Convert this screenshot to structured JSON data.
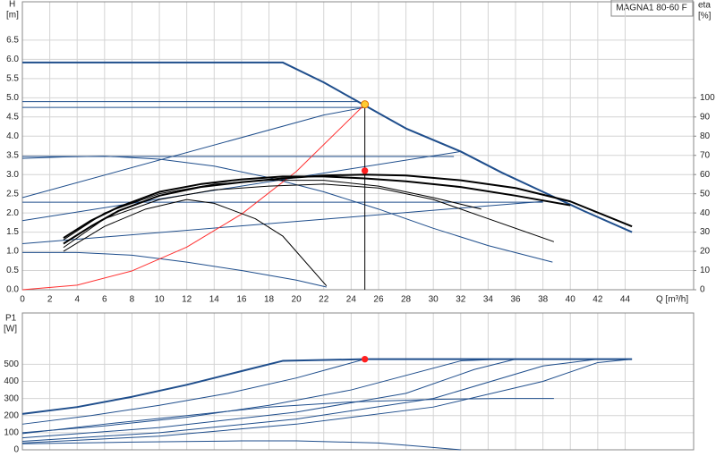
{
  "chart_data": [
    {
      "type": "line",
      "title": "MAGNA1 80-60 F",
      "xlabel": "Q [m³/h]",
      "ylabel": "H",
      "yunit": "[m]",
      "y2label": "eta",
      "y2unit": "[%]",
      "xlim": [
        0,
        49
      ],
      "xticks": [
        0,
        2,
        4,
        6,
        8,
        10,
        12,
        14,
        16,
        18,
        20,
        22,
        24,
        26,
        28,
        30,
        32,
        34,
        36,
        38,
        40,
        42,
        44
      ],
      "ylim": [
        0,
        7.5
      ],
      "yticks": [
        {
          "value": 0,
          "label": "0.0"
        },
        0.5,
        {
          "value": 1,
          "label": "1.0"
        },
        1.5,
        {
          "value": 2,
          "label": "2.0"
        },
        2.5,
        {
          "value": 3,
          "label": "3.0"
        },
        3.5,
        {
          "value": 4,
          "label": "4.0"
        },
        4.5,
        {
          "value": 5,
          "label": "5.0"
        },
        5.5,
        {
          "value": 6,
          "label": "6.0"
        },
        6.5
      ],
      "y2lim": [
        0,
        150
      ],
      "y2ticks": [
        0,
        10,
        20,
        30,
        40,
        50,
        60,
        70,
        80,
        90,
        100
      ],
      "grid": true,
      "show_xtick_labels": true,
      "series": [
        {
          "color": "#1f4e8c",
          "width": 2,
          "x": [
            0,
            19,
            22,
            25,
            28,
            32,
            35,
            38,
            41,
            44.5
          ],
          "values": [
            5.92,
            5.92,
            5.4,
            4.8,
            4.2,
            3.6,
            3.05,
            2.55,
            2.05,
            1.5
          ]
        },
        {
          "color": "#1f4e8c",
          "width": 1,
          "x": [
            0,
            24.5
          ],
          "values": [
            4.9,
            4.9
          ]
        },
        {
          "color": "#1f4e8c",
          "width": 1,
          "x": [
            0,
            25
          ],
          "values": [
            4.75,
            4.75
          ]
        },
        {
          "color": "#1f4e8c",
          "width": 1,
          "x": [
            0,
            22,
            25
          ],
          "values": [
            2.4,
            4.55,
            4.75
          ]
        },
        {
          "color": "#1f4e8c",
          "width": 1,
          "x": [
            0,
            31.5
          ],
          "values": [
            3.47,
            3.47
          ]
        },
        {
          "color": "#1f4e8c",
          "width": 1,
          "x": [
            0,
            32
          ],
          "values": [
            1.8,
            3.6
          ]
        },
        {
          "color": "#1f4e8c",
          "width": 1,
          "x": [
            0,
            38
          ],
          "values": [
            2.28,
            2.28
          ]
        },
        {
          "color": "#1f4e8c",
          "width": 1,
          "x": [
            0,
            38
          ],
          "values": [
            1.2,
            2.3
          ]
        },
        {
          "color": "#1f4e8c",
          "width": 1,
          "x": [
            0,
            3,
            6,
            10,
            14,
            18,
            22,
            26,
            30,
            34,
            38.7
          ],
          "values": [
            3.42,
            3.46,
            3.48,
            3.4,
            3.22,
            2.92,
            2.55,
            2.1,
            1.6,
            1.15,
            0.72
          ]
        },
        {
          "color": "#1f4e8c",
          "width": 1,
          "x": [
            0,
            4,
            8,
            12,
            16,
            20,
            22.2
          ],
          "values": [
            0.97,
            0.97,
            0.9,
            0.72,
            0.5,
            0.25,
            0.07
          ]
        },
        {
          "color": "#ff3030",
          "width": 1,
          "x": [
            0,
            4,
            8,
            12,
            16,
            20,
            25
          ],
          "values": [
            0,
            0.12,
            0.49,
            1.11,
            1.97,
            3.08,
            4.83
          ]
        },
        {
          "color": "#000000",
          "width": 2,
          "axis": "y2",
          "x": [
            3,
            5,
            7,
            10,
            13,
            16,
            19,
            22,
            25,
            28,
            32,
            36,
            40,
            44.5
          ],
          "values": [
            24,
            33,
            41,
            49,
            53.5,
            56,
            58,
            59.5,
            60,
            59.5,
            57,
            53,
            46,
            33
          ]
        },
        {
          "color": "#000000",
          "width": 2,
          "axis": "y2",
          "x": [
            3,
            5,
            7,
            10,
            13,
            16,
            19,
            22,
            25,
            28,
            32,
            36,
            40
          ],
          "values": [
            27,
            36,
            43,
            51,
            55,
            57.5,
            59,
            59,
            58,
            56.5,
            53.5,
            49,
            44
          ]
        },
        {
          "color": "#000000",
          "width": 1,
          "axis": "y2",
          "x": [
            3,
            6,
            10,
            14,
            18,
            22,
            26,
            30,
            34,
            38.8
          ],
          "values": [
            22,
            37,
            47,
            52,
            54,
            55,
            53,
            47,
            37,
            25
          ]
        },
        {
          "color": "#000000",
          "width": 1,
          "axis": "y2",
          "x": [
            3,
            6,
            10,
            14,
            18,
            22,
            26,
            30,
            33.5
          ],
          "values": [
            26,
            40,
            50,
            55,
            57,
            57,
            54,
            48,
            42
          ]
        },
        {
          "color": "#000000",
          "width": 1,
          "axis": "y2",
          "x": [
            3,
            6,
            9,
            12,
            14,
            17,
            19,
            22.2
          ],
          "values": [
            20,
            33,
            42,
            47,
            45,
            37,
            28,
            2
          ]
        }
      ],
      "points": [
        {
          "x": 25,
          "y": 4.83,
          "color": "#ffcc33",
          "stroke": "#e07000",
          "drop_line": true
        },
        {
          "x": 25,
          "y": 62,
          "color": "#ff2020",
          "stroke": "#ff2020",
          "axis": "y2"
        }
      ]
    },
    {
      "type": "line",
      "ylabel": "P1",
      "yunit": "[W]",
      "xlim": [
        0,
        49
      ],
      "xticks": [
        0,
        2,
        4,
        6,
        8,
        10,
        12,
        14,
        16,
        18,
        20,
        22,
        24,
        26,
        28,
        30,
        32,
        34,
        36,
        38,
        40,
        42,
        44
      ],
      "ylim": [
        0,
        800
      ],
      "yticks": [
        0,
        100,
        200,
        300,
        400,
        500
      ],
      "grid": true,
      "show_xtick_labels": false,
      "series": [
        {
          "color": "#1f4e8c",
          "width": 2,
          "x": [
            0,
            4,
            8,
            12,
            16,
            19,
            25,
            44.5
          ],
          "values": [
            210,
            250,
            310,
            380,
            460,
            520,
            530,
            530
          ]
        },
        {
          "color": "#1f4e8c",
          "width": 1,
          "x": [
            0,
            5,
            10,
            15,
            20,
            25
          ],
          "values": [
            150,
            200,
            260,
            330,
            420,
            530
          ]
        },
        {
          "color": "#1f4e8c",
          "width": 1,
          "x": [
            0,
            6,
            12,
            18,
            24,
            32,
            35
          ],
          "values": [
            100,
            140,
            190,
            260,
            350,
            520,
            530
          ]
        },
        {
          "color": "#1f4e8c",
          "width": 1,
          "x": [
            0,
            10,
            20,
            28,
            33,
            36
          ],
          "values": [
            70,
            130,
            220,
            330,
            470,
            530
          ]
        },
        {
          "color": "#1f4e8c",
          "width": 1,
          "x": [
            0,
            6,
            12,
            18,
            24,
            30,
            35,
            38.8
          ],
          "values": [
            95,
            150,
            200,
            250,
            280,
            295,
            300,
            300
          ]
        },
        {
          "color": "#1f4e8c",
          "width": 1,
          "x": [
            0,
            10,
            20,
            30,
            38,
            42
          ],
          "values": [
            50,
            100,
            180,
            300,
            490,
            530
          ]
        },
        {
          "color": "#1f4e8c",
          "width": 1,
          "x": [
            0,
            10,
            20,
            30,
            38,
            42,
            44.5
          ],
          "values": [
            40,
            80,
            150,
            250,
            400,
            510,
            530
          ]
        },
        {
          "color": "#1f4e8c",
          "width": 1,
          "x": [
            0,
            8,
            16,
            20,
            26,
            29,
            32
          ],
          "values": [
            35,
            45,
            52,
            52,
            40,
            20,
            0
          ]
        }
      ],
      "points": [
        {
          "x": 25,
          "y": 530,
          "color": "#ff2020",
          "stroke": "#ff2020"
        }
      ]
    }
  ]
}
